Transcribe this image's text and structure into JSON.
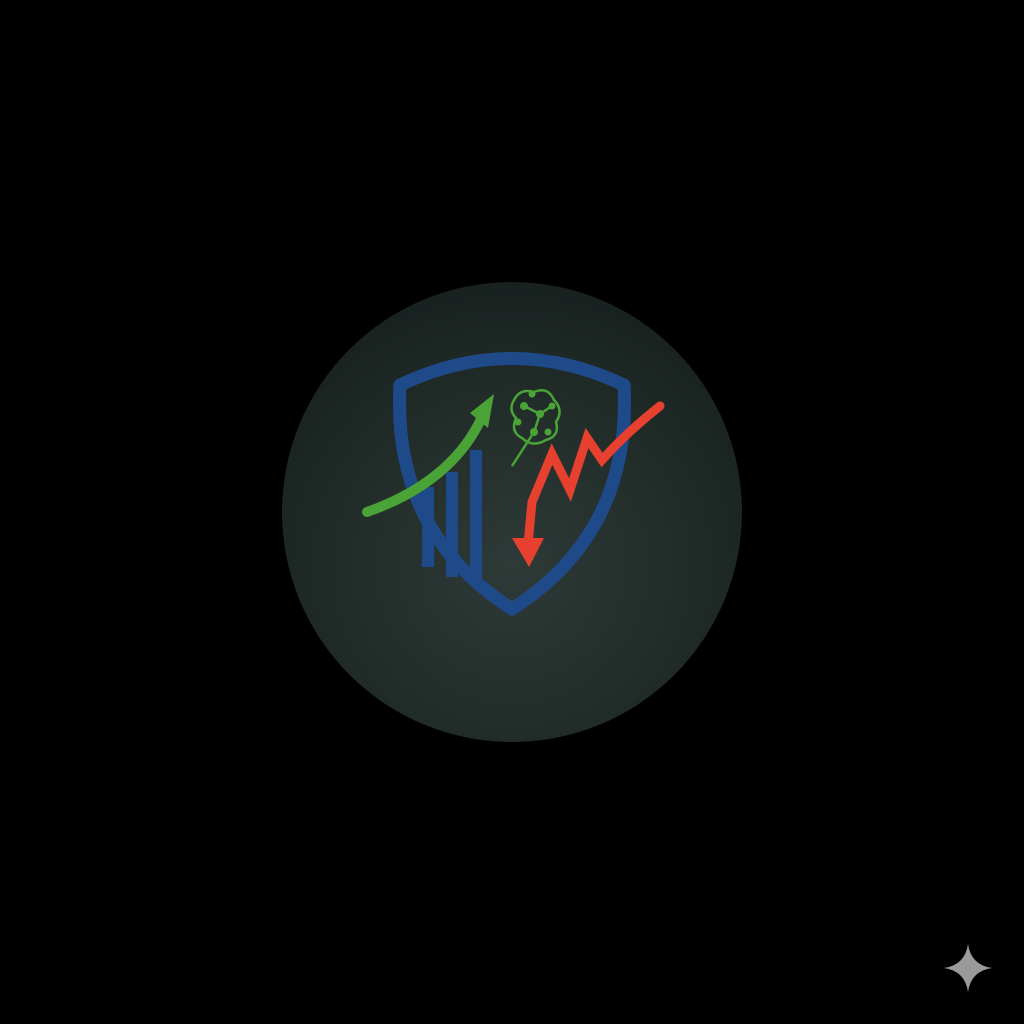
{
  "scene": {
    "background_color": "#000000",
    "disc_color": "#222d2a"
  },
  "logo": {
    "icon": "shield-growth-decline-logo-icon",
    "colors": {
      "shield": "#1e4a8a",
      "up_arrow": "#4aa336",
      "down_arrow": "#e8402e",
      "network": "#4aa336"
    }
  },
  "corner_mark": {
    "icon": "sparkle-icon",
    "color": "#9a9a9a"
  }
}
